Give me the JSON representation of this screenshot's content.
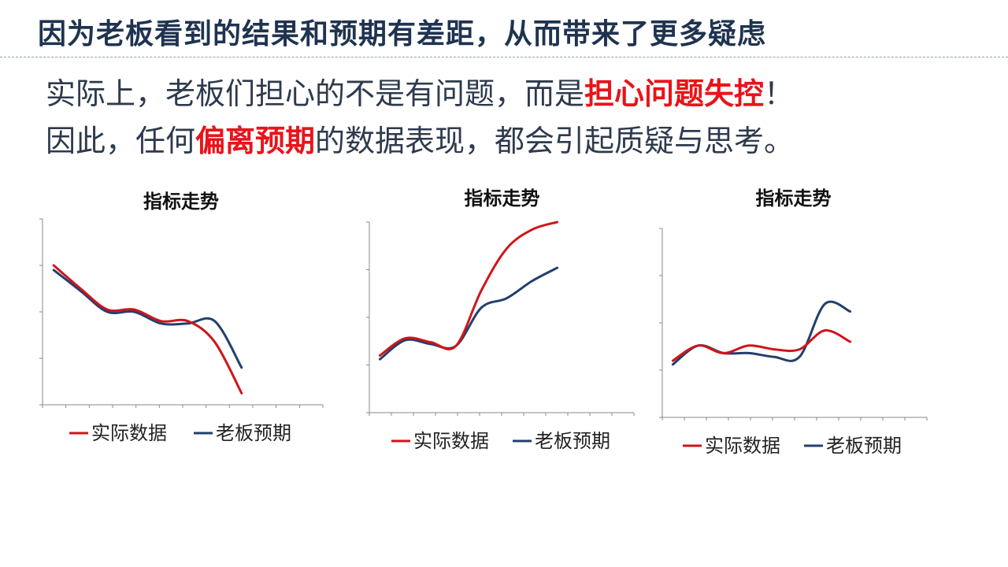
{
  "title": "因为老板看到的结果和预期有差距，从而带来了更多疑虑",
  "body": {
    "line1": {
      "pre": "实际上，老板们担心的不是有问题，而是",
      "highlight": "担心问题失控",
      "post": "！"
    },
    "line2": {
      "pre": "因此，任何",
      "highlight": "偏离预期",
      "post": "的数据表现，都会引起质疑与思考。"
    }
  },
  "colors": {
    "title": "#1f3350",
    "text": "#2e3a4d",
    "highlight": "#e8141a",
    "actual": "#d0141a",
    "expected": "#223f6e",
    "axis": "#888888"
  },
  "chart_data": [
    {
      "type": "line",
      "title": "指标走势",
      "x": [
        0,
        1,
        2,
        3,
        4,
        5,
        6,
        7
      ],
      "ylim": [
        0,
        8
      ],
      "series": [
        {
          "name": "实际数据",
          "color": "#d0141a",
          "values": [
            6.0,
            5.0,
            4.1,
            4.1,
            3.6,
            3.6,
            2.7,
            0.5
          ]
        },
        {
          "name": "老板预期",
          "color": "#223f6e",
          "values": [
            5.8,
            4.9,
            4.0,
            4.0,
            3.5,
            3.5,
            3.6,
            1.6
          ]
        }
      ],
      "legend_position": "bottom",
      "grid": false
    },
    {
      "type": "line",
      "title": "指标走势",
      "x": [
        0,
        1,
        2,
        3,
        4,
        5,
        6,
        7
      ],
      "ylim": [
        0,
        10
      ],
      "series": [
        {
          "name": "实际数据",
          "color": "#d0141a",
          "values": [
            3.0,
            3.9,
            3.7,
            3.5,
            6.4,
            8.6,
            9.6,
            10.0
          ]
        },
        {
          "name": "老板预期",
          "color": "#223f6e",
          "values": [
            2.8,
            3.8,
            3.6,
            3.5,
            5.5,
            6.0,
            6.9,
            7.6
          ]
        }
      ],
      "legend_position": "bottom",
      "grid": false
    },
    {
      "type": "line",
      "title": "指标走势",
      "x": [
        0,
        1,
        2,
        3,
        4,
        5,
        6,
        7
      ],
      "ylim": [
        0,
        5
      ],
      "series": [
        {
          "name": "实际数据",
          "color": "#d0141a",
          "values": [
            1.5,
            1.9,
            1.7,
            1.9,
            1.8,
            1.8,
            2.3,
            2.0
          ]
        },
        {
          "name": "老板预期",
          "color": "#223f6e",
          "values": [
            1.4,
            1.9,
            1.7,
            1.7,
            1.6,
            1.6,
            3.0,
            2.8
          ]
        }
      ],
      "legend_position": "bottom",
      "grid": false
    }
  ]
}
